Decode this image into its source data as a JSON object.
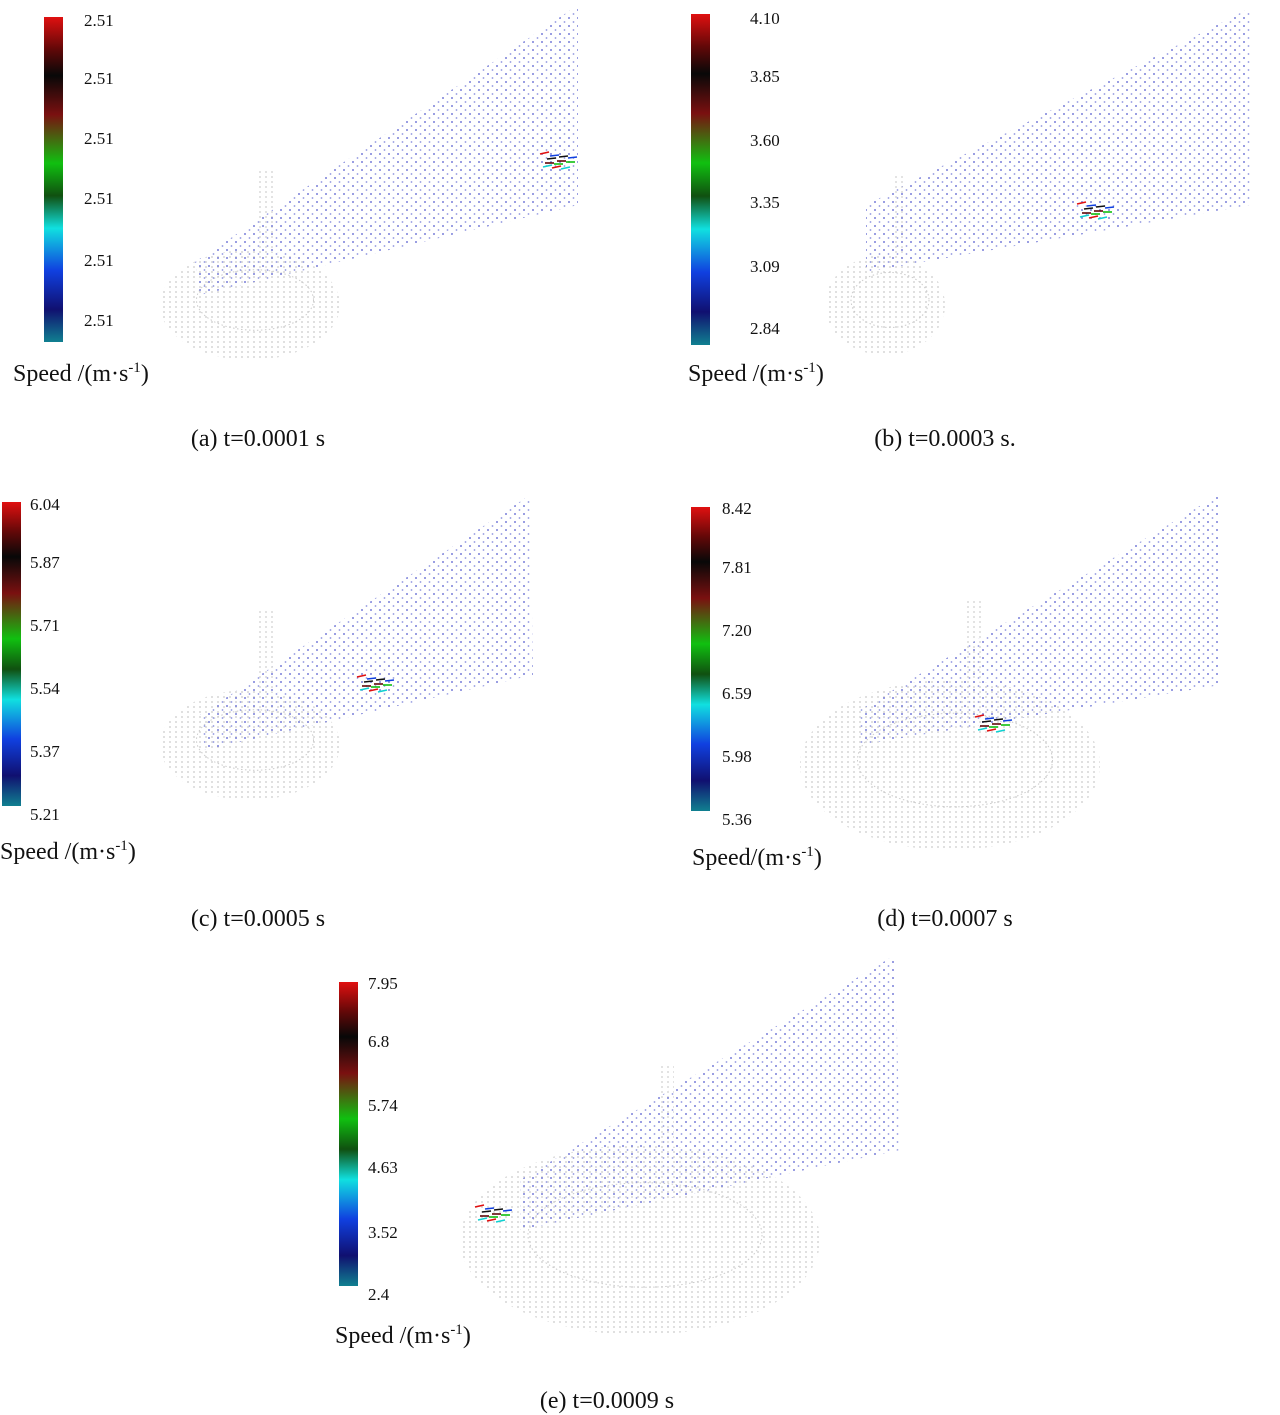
{
  "panels": [
    {
      "ticks": [
        "2.51",
        "2.51",
        "2.51",
        "2.51",
        "2.51",
        "2.51"
      ],
      "label": {
        "main": "Speed /(m·s",
        "sup": "-1",
        "end": ")"
      },
      "caption": "(a) t=0.0001 s"
    },
    {
      "ticks": [
        "4.10",
        "3.85",
        "3.60",
        "3.35",
        "3.09",
        "2.84"
      ],
      "label": {
        "main": "Speed /(m·s",
        "sup": "-1",
        "end": ")"
      },
      "caption": "(b) t=0.0003 s."
    },
    {
      "ticks": [
        "6.04",
        "5.87",
        "5.71",
        "5.54",
        "5.37",
        "5.21"
      ],
      "label": {
        "main": "Speed /(m·s",
        "sup": "-1",
        "end": ")"
      },
      "caption": "(c) t=0.0005 s"
    },
    {
      "ticks": [
        "8.42",
        "7.81",
        "7.20",
        "6.59",
        "5.98",
        "5.36"
      ],
      "label": {
        "main": "Speed/(m·s",
        "sup": "-1",
        "end": ")"
      },
      "caption": "(d) t=0.0007 s"
    },
    {
      "ticks": [
        "7.95",
        "6.8",
        "5.74",
        "4.63",
        "3.52",
        "2.4"
      ],
      "label": {
        "main": "Speed /(m·s",
        "sup": "-1",
        "end": ")"
      },
      "caption": "(e) t=0.0009 s"
    }
  ]
}
